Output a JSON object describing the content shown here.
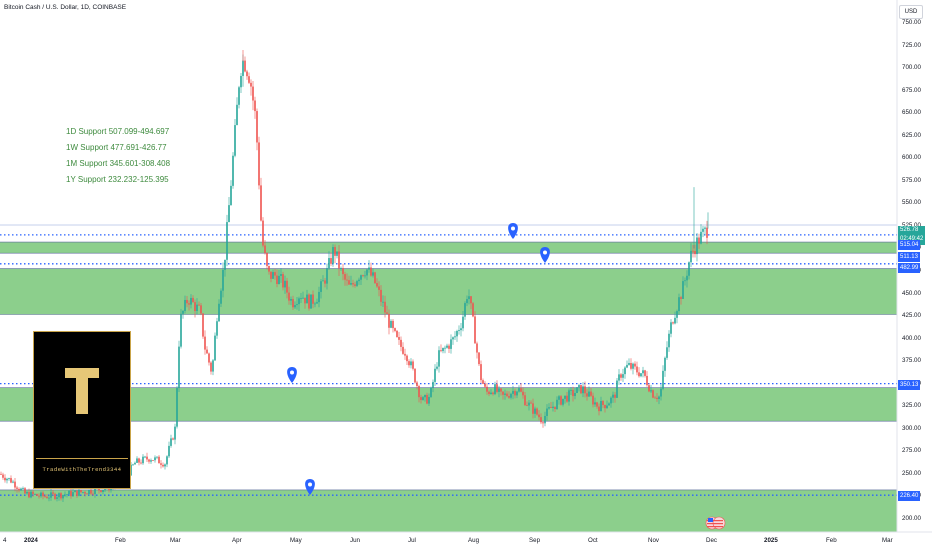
{
  "header": {
    "title": "Bitcoin Cash / U.S. Dollar, 1D, COINBASE",
    "currency": "USD"
  },
  "chart_data": {
    "type": "candlestick",
    "y_axis": {
      "ticks": [
        "750.00",
        "725.00",
        "700.00",
        "675.00",
        "650.00",
        "625.00",
        "600.00",
        "575.00",
        "550.00",
        "525.00",
        "500.00",
        "475.00",
        "450.00",
        "425.00",
        "400.00",
        "375.00",
        "350.00",
        "325.00",
        "300.00",
        "275.00",
        "250.00",
        "225.00",
        "200.00"
      ],
      "range": [
        185,
        760
      ]
    },
    "x_axis": {
      "ticks": [
        "4",
        "2024",
        "Feb",
        "Mar",
        "Apr",
        "May",
        "Jun",
        "Jul",
        "Aug",
        "Sep",
        "Oct",
        "Nov",
        "Dec",
        "2025",
        "Feb",
        "Mar"
      ]
    },
    "support_notes": [
      "1D Support 507.099-494.697",
      "1W Support 477.691-426.77",
      "1M Support 345.601-308.408",
      "1Y Support 232.232-125.395"
    ],
    "zones": [
      {
        "from": 494.697,
        "to": 507.099
      },
      {
        "from": 426.77,
        "to": 477.691
      },
      {
        "from": 308.408,
        "to": 345.601
      },
      {
        "from": 185,
        "to": 232.232
      }
    ],
    "levels": [
      515.04,
      482.99,
      350.13,
      226.4
    ],
    "price_labels": [
      {
        "value": "526.78",
        "sub": "02:49:42",
        "color": "#26a69a"
      },
      {
        "value": "515.04",
        "color": "#2962ff"
      },
      {
        "value": "511.13",
        "color": "#2962ff"
      },
      {
        "value": "482.99",
        "color": "#2962ff"
      },
      {
        "value": "350.13",
        "color": "#2962ff"
      },
      {
        "value": "226.40",
        "color": "#2962ff"
      }
    ],
    "current_price": 526.78,
    "markers": [
      513,
      545,
      292,
      310
    ],
    "colors": {
      "up": "#26a69a",
      "down": "#ef5350",
      "zone": "#8ccf8c",
      "level": "#2962ff"
    }
  },
  "logo": {
    "glyph": "T",
    "text": "TradeWithTheTrend3344"
  }
}
